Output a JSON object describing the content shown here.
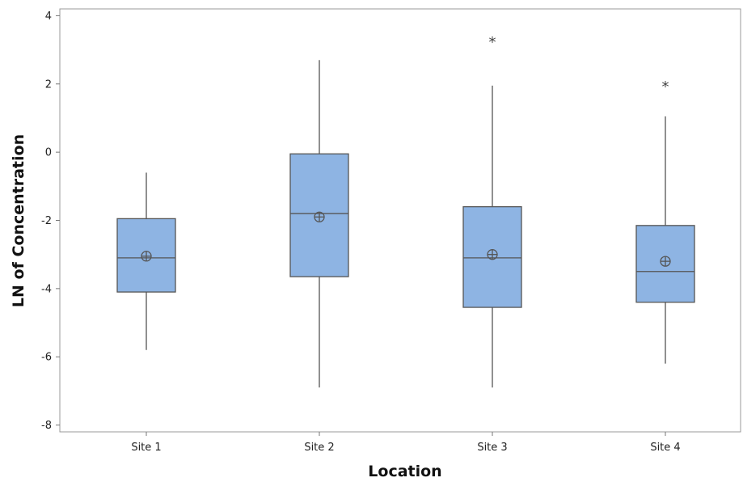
{
  "chart_data": {
    "type": "box",
    "title": "",
    "xlabel": "Location",
    "ylabel": "LN of Concentration",
    "categories": [
      "Site 1",
      "Site 2",
      "Site 3",
      "Site 4"
    ],
    "ylim": [
      -8.2,
      4.2
    ],
    "yticks": [
      -8,
      -6,
      -4,
      -2,
      0,
      2,
      4
    ],
    "ytick_labels": [
      "-8",
      "-6",
      "-4",
      "-2",
      "0",
      "2",
      "4"
    ],
    "grid": false,
    "box_color": "#8EB4E3",
    "line_color": "#555555",
    "series": [
      {
        "category": "Site 1",
        "whisker_low": -5.8,
        "q1": -4.1,
        "median": -3.1,
        "q3": -1.95,
        "whisker_high": -0.6,
        "mean": -3.05,
        "outliers": []
      },
      {
        "category": "Site 2",
        "whisker_low": -6.9,
        "q1": -3.65,
        "median": -1.8,
        "q3": -0.05,
        "whisker_high": 2.7,
        "mean": -1.9,
        "outliers": []
      },
      {
        "category": "Site 3",
        "whisker_low": -6.9,
        "q1": -4.55,
        "median": -3.1,
        "q3": -1.6,
        "whisker_high": 1.95,
        "mean": -3.0,
        "outliers": [
          3.3
        ]
      },
      {
        "category": "Site 4",
        "whisker_low": -6.2,
        "q1": -4.4,
        "median": -3.5,
        "q3": -2.15,
        "whisker_high": 1.05,
        "mean": -3.2,
        "outliers": [
          2.0
        ]
      }
    ]
  }
}
